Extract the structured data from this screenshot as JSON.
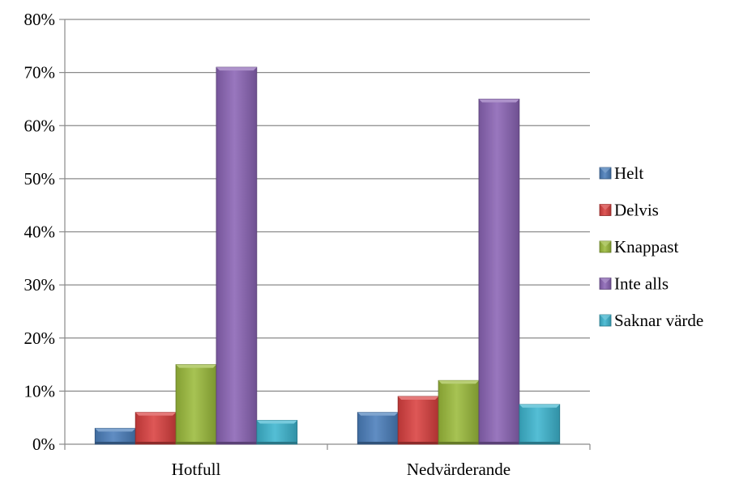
{
  "chart_data": {
    "type": "bar",
    "categories": [
      "Hotfull",
      "Nedvärderande"
    ],
    "series": [
      {
        "name": "Helt",
        "values": [
          3,
          6
        ],
        "color": "#4a7ebb"
      },
      {
        "name": "Delvis",
        "values": [
          6,
          9
        ],
        "color": "#d9403f"
      },
      {
        "name": "Knappast",
        "values": [
          15,
          12
        ],
        "color": "#9bbb3b"
      },
      {
        "name": "Inte alls",
        "values": [
          71,
          65
        ],
        "color": "#8b64b5"
      },
      {
        "name": "Saknar värde",
        "values": [
          4.5,
          7.5
        ],
        "color": "#3db5cf"
      }
    ],
    "ylim": [
      0,
      80
    ],
    "yticks": [
      "0%",
      "10%",
      "20%",
      "30%",
      "40%",
      "50%",
      "60%",
      "70%",
      "80%"
    ],
    "grid": true,
    "legend_position": "right"
  }
}
